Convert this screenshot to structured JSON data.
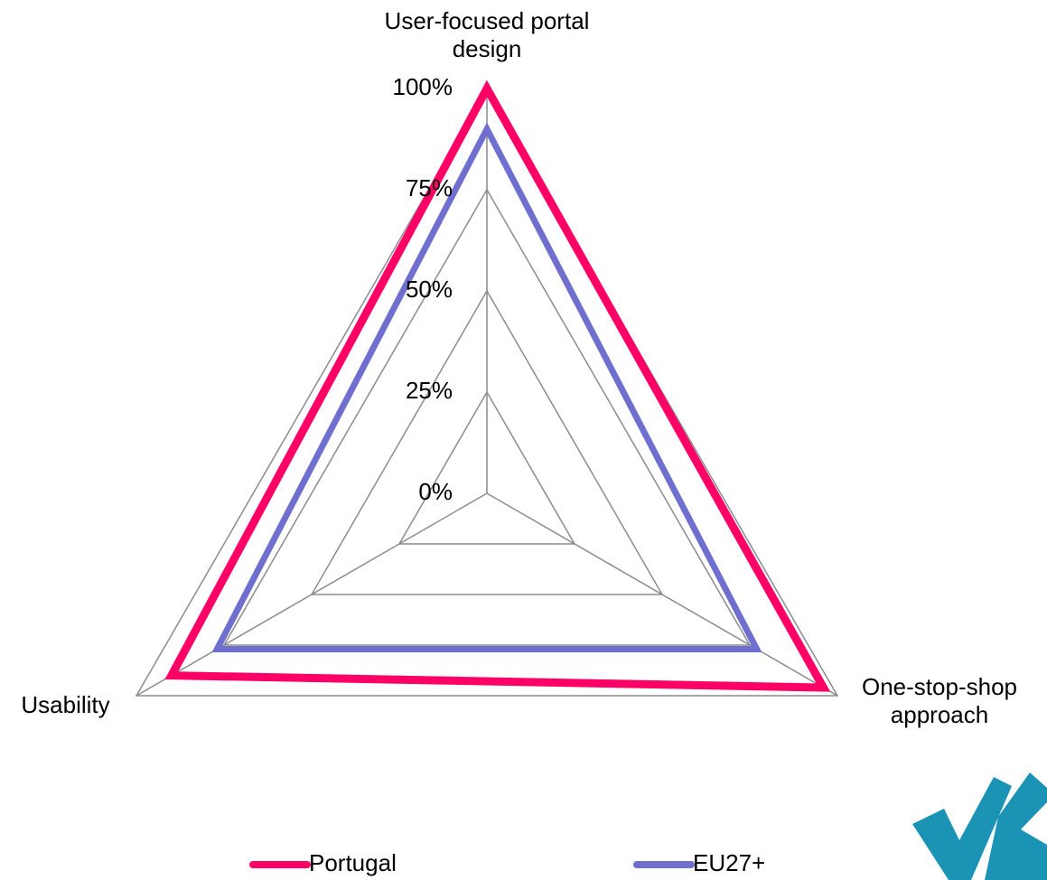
{
  "chart_data": {
    "type": "radar",
    "categories": [
      "User-focused portal design",
      "One-stop-shop approach",
      "Usability"
    ],
    "series": [
      {
        "name": "Portugal",
        "color": "#ff0066",
        "values": [
          100,
          96,
          90
        ]
      },
      {
        "name": "EU27+",
        "color": "#6f6fd0",
        "values": [
          90,
          77,
          77
        ]
      }
    ],
    "ylim": [
      0,
      100
    ],
    "yticks": [
      {
        "value": 0,
        "label": "0%"
      },
      {
        "value": 25,
        "label": "25%"
      },
      {
        "value": 50,
        "label": "50%"
      },
      {
        "value": 75,
        "label": "75%"
      },
      {
        "value": 100,
        "label": "100%"
      }
    ],
    "grid": true,
    "legend": "bottom"
  }
}
